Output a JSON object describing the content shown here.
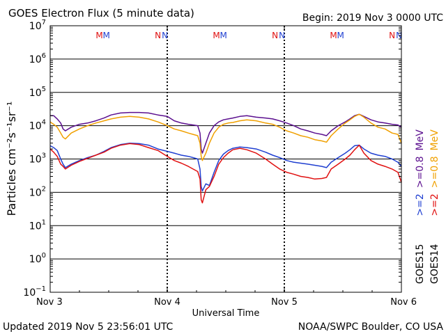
{
  "header": {
    "title": "GOES Electron Flux (5 minute data)",
    "begin": "Begin: 2019 Nov 3 0000 UTC"
  },
  "footer": {
    "updated": "Updated 2019 Nov  5 23:56:01 UTC",
    "source": "NOAA/SWPC Boulder, CO USA"
  },
  "colors": {
    "goes15_2mev": "#1f3fd1",
    "goes14_2mev": "#e01010",
    "goes15_08mev": "#5b0f8f",
    "goes14_08mev": "#f0a000",
    "marker_m": "#e01010",
    "marker_n": "#1f3fd1"
  },
  "chart_data": {
    "type": "line",
    "xlabel": "Universal Time",
    "ylabel": "Particles cm⁻²s⁻¹sr⁻¹",
    "x_ticks": [
      {
        "label": "Nov 3",
        "day": 0
      },
      {
        "label": "Nov 4",
        "day": 1
      },
      {
        "label": "Nov 5",
        "day": 2
      },
      {
        "label": "Nov 6",
        "day": 3
      }
    ],
    "xlim_days": [
      0,
      3
    ],
    "y_scale": "log",
    "ylim": [
      0.1,
      10000000
    ],
    "y_ticks": [
      {
        "base": "10",
        "exp": "7",
        "value": 10000000
      },
      {
        "base": "10",
        "exp": "6",
        "value": 1000000
      },
      {
        "base": "10",
        "exp": "5",
        "value": 100000
      },
      {
        "base": "10",
        "exp": "4",
        "value": 10000
      },
      {
        "base": "10",
        "exp": "3",
        "value": 1000
      },
      {
        "base": "10",
        "exp": "2",
        "value": 100
      },
      {
        "base": "10",
        "exp": "1",
        "value": 10
      },
      {
        "base": "10",
        "exp": "0",
        "value": 1
      },
      {
        "base": "10",
        "exp": "−1",
        "value": 0.1
      }
    ],
    "threshold": 1000,
    "markers": [
      {
        "label": "M",
        "day": 0.42,
        "color_key": "marker_m"
      },
      {
        "label": "M",
        "day": 0.48,
        "color_key": "marker_n"
      },
      {
        "label": "N",
        "day": 0.92,
        "color_key": "marker_m"
      },
      {
        "label": "N",
        "day": 0.98,
        "color_key": "marker_n"
      },
      {
        "label": "M",
        "day": 1.42,
        "color_key": "marker_m"
      },
      {
        "label": "M",
        "day": 1.48,
        "color_key": "marker_n"
      },
      {
        "label": "N",
        "day": 1.92,
        "color_key": "marker_m"
      },
      {
        "label": "N",
        "day": 1.98,
        "color_key": "marker_n"
      },
      {
        "label": "M",
        "day": 2.42,
        "color_key": "marker_m"
      },
      {
        "label": "M",
        "day": 2.48,
        "color_key": "marker_n"
      },
      {
        "label": "N",
        "day": 2.92,
        "color_key": "marker_m"
      },
      {
        "label": "N",
        "day": 2.98,
        "color_key": "marker_n"
      }
    ],
    "series": [
      {
        "key": "g15_08",
        "color_key": "goes15_08mev",
        "x": [
          0,
          0.03,
          0.06,
          0.09,
          0.11,
          0.13,
          0.18,
          0.25,
          0.32,
          0.39,
          0.46,
          0.52,
          0.6,
          0.68,
          0.76,
          0.84,
          0.92,
          1.0,
          1.06,
          1.12,
          1.18,
          1.22,
          1.26,
          1.28,
          1.29,
          1.3,
          1.33,
          1.36,
          1.4,
          1.44,
          1.48,
          1.52,
          1.56,
          1.62,
          1.68,
          1.76,
          1.84,
          1.9,
          1.96,
          2.02,
          2.08,
          2.14,
          2.2,
          2.26,
          2.32,
          2.36,
          2.4,
          2.46,
          2.52,
          2.56,
          2.6,
          2.64,
          2.68,
          2.74,
          2.8,
          2.86,
          2.92,
          2.97,
          3.0
        ],
        "y": [
          20000,
          20000,
          16000,
          12000,
          8000,
          7000,
          9000,
          11000,
          12000,
          14000,
          17000,
          21000,
          24000,
          25000,
          25000,
          24000,
          21000,
          19000,
          14000,
          12000,
          11000,
          10500,
          10000,
          6000,
          2000,
          1500,
          3000,
          6000,
          10000,
          13000,
          15000,
          16000,
          17000,
          19000,
          20000,
          18000,
          17000,
          16000,
          14000,
          12000,
          10000,
          8000,
          7000,
          6000,
          5500,
          5000,
          7000,
          10000,
          13000,
          16000,
          20000,
          22000,
          19000,
          15000,
          13000,
          12000,
          11000,
          10500,
          9000
        ]
      },
      {
        "key": "g14_08",
        "color_key": "goes14_08mev",
        "x": [
          0,
          0.03,
          0.06,
          0.09,
          0.11,
          0.13,
          0.18,
          0.25,
          0.32,
          0.39,
          0.46,
          0.52,
          0.6,
          0.68,
          0.76,
          0.84,
          0.92,
          1.0,
          1.06,
          1.12,
          1.18,
          1.22,
          1.26,
          1.28,
          1.29,
          1.3,
          1.33,
          1.36,
          1.4,
          1.44,
          1.48,
          1.52,
          1.56,
          1.62,
          1.68,
          1.76,
          1.84,
          1.9,
          1.96,
          2.02,
          2.08,
          2.14,
          2.2,
          2.26,
          2.32,
          2.36,
          2.4,
          2.46,
          2.52,
          2.56,
          2.6,
          2.64,
          2.68,
          2.74,
          2.8,
          2.86,
          2.92,
          2.97,
          3.0
        ],
        "y": [
          13000,
          11000,
          9000,
          6000,
          4500,
          4000,
          6000,
          8000,
          10000,
          12000,
          14000,
          16000,
          18000,
          19000,
          18000,
          16000,
          13000,
          10000,
          8000,
          7000,
          6000,
          5500,
          5000,
          3000,
          1200,
          900,
          1500,
          3000,
          6000,
          9000,
          11000,
          12000,
          12500,
          14000,
          15000,
          14000,
          12000,
          11000,
          9000,
          7000,
          6000,
          5000,
          4500,
          3800,
          3500,
          3200,
          5000,
          8000,
          12000,
          15000,
          19000,
          22000,
          18000,
          12000,
          9000,
          8000,
          6000,
          5500,
          3000
        ]
      },
      {
        "key": "g15_2",
        "color_key": "goes15_2mev",
        "x": [
          0,
          0.03,
          0.06,
          0.09,
          0.11,
          0.13,
          0.18,
          0.25,
          0.32,
          0.39,
          0.46,
          0.52,
          0.6,
          0.68,
          0.76,
          0.84,
          0.92,
          1.0,
          1.06,
          1.12,
          1.18,
          1.22,
          1.26,
          1.28,
          1.29,
          1.3,
          1.33,
          1.36,
          1.4,
          1.44,
          1.48,
          1.52,
          1.56,
          1.62,
          1.68,
          1.76,
          1.84,
          1.9,
          1.96,
          2.02,
          2.08,
          2.14,
          2.2,
          2.26,
          2.32,
          2.36,
          2.4,
          2.46,
          2.52,
          2.56,
          2.6,
          2.64,
          2.68,
          2.74,
          2.8,
          2.86,
          2.92,
          2.97,
          3.0
        ],
        "y": [
          2500,
          2200,
          1800,
          1000,
          700,
          550,
          700,
          900,
          1100,
          1300,
          1700,
          2200,
          2700,
          3000,
          2900,
          2600,
          2000,
          1700,
          1500,
          1300,
          1200,
          1100,
          1000,
          500,
          150,
          110,
          180,
          160,
          400,
          900,
          1400,
          1800,
          2100,
          2300,
          2200,
          2000,
          1600,
          1300,
          1100,
          900,
          800,
          750,
          700,
          650,
          600,
          550,
          800,
          1100,
          1500,
          1900,
          2500,
          2600,
          2000,
          1500,
          1300,
          1200,
          1000,
          800,
          600
        ]
      },
      {
        "key": "g14_2",
        "color_key": "goes14_2mev",
        "x": [
          0,
          0.03,
          0.06,
          0.09,
          0.11,
          0.13,
          0.18,
          0.25,
          0.32,
          0.39,
          0.46,
          0.52,
          0.6,
          0.68,
          0.76,
          0.84,
          0.92,
          1.0,
          1.06,
          1.12,
          1.18,
          1.22,
          1.26,
          1.28,
          1.29,
          1.3,
          1.33,
          1.36,
          1.4,
          1.44,
          1.48,
          1.52,
          1.56,
          1.62,
          1.68,
          1.76,
          1.84,
          1.9,
          1.96,
          2.02,
          2.08,
          2.14,
          2.2,
          2.26,
          2.32,
          2.36,
          2.4,
          2.46,
          2.52,
          2.56,
          2.6,
          2.64,
          2.68,
          2.74,
          2.8,
          2.86,
          2.92,
          2.97,
          3.0
        ],
        "y": [
          2000,
          1600,
          1200,
          700,
          600,
          500,
          650,
          850,
          1050,
          1300,
          1600,
          2100,
          2600,
          2900,
          2700,
          2200,
          1800,
          1200,
          900,
          750,
          600,
          500,
          420,
          250,
          60,
          48,
          120,
          150,
          300,
          700,
          1100,
          1500,
          1900,
          2100,
          1900,
          1500,
          1000,
          700,
          500,
          400,
          350,
          300,
          280,
          250,
          260,
          280,
          500,
          700,
          1000,
          1300,
          1900,
          2600,
          1500,
          900,
          700,
          600,
          500,
          400,
          200
        ]
      }
    ],
    "legend": [
      {
        "sat": "GOES15",
        "parts": [
          {
            "text": ">=2",
            "color_key": "goes15_2mev"
          },
          {
            "text": ">=0.8",
            "color_key": "goes15_08mev"
          },
          {
            "text": "MeV",
            "color_key": "goes15_08mev"
          }
        ]
      },
      {
        "sat": "GOES14",
        "parts": [
          {
            "text": ">=2",
            "color_key": "goes14_2mev"
          },
          {
            "text": ">=0.8",
            "color_key": "goes14_08mev"
          },
          {
            "text": "MeV",
            "color_key": "goes14_08mev"
          }
        ]
      }
    ]
  }
}
